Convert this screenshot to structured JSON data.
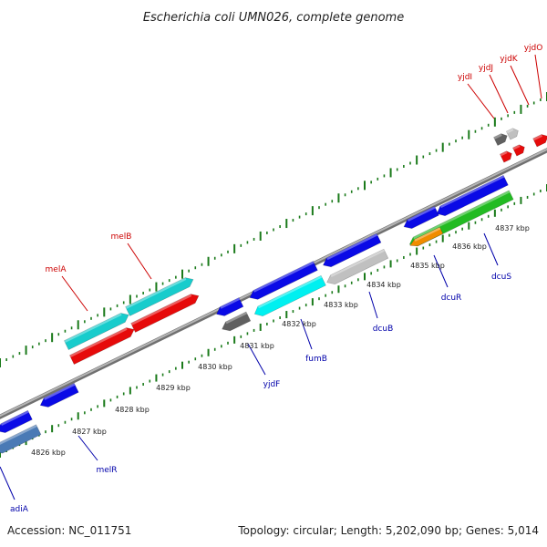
{
  "title": "Escherichia coli UMN026, complete genome",
  "accession": "Accession: NC_011751",
  "summary": "Topology: circular; Length: 5,202,090 bp; Genes: 5,014",
  "tick_labels": [
    "4826 kbp",
    "4827 kbp",
    "4828 kbp",
    "4829 kbp",
    "4830 kbp",
    "4831 kbp",
    "4832 kbp",
    "4833 kbp",
    "4834 kbp",
    "4835 kbp",
    "4836 kbp",
    "4837 kbp"
  ],
  "top_strand_labels": [
    "melA",
    "melB",
    "yjdI",
    "yjdJ",
    "yjdK",
    "yjdO"
  ],
  "bottom_strand_labels": [
    "adiA",
    "melR",
    "yjdF",
    "fumB",
    "dcuB",
    "dcuR",
    "dcuS"
  ],
  "colors": {
    "top_label": "#cc0000",
    "bottom_label": "#0000aa",
    "backbone": "#888888",
    "tick": "#1a7a1a",
    "blue": "#0a0ae6",
    "red": "#e60a0a",
    "teal": "#18cccc",
    "cyan": "#00f0f0",
    "gray_light": "#c0c0c0",
    "gray_dark": "#606060",
    "green": "#22bb22",
    "orange": "#f08c00",
    "steel": "#4a7ab5"
  }
}
